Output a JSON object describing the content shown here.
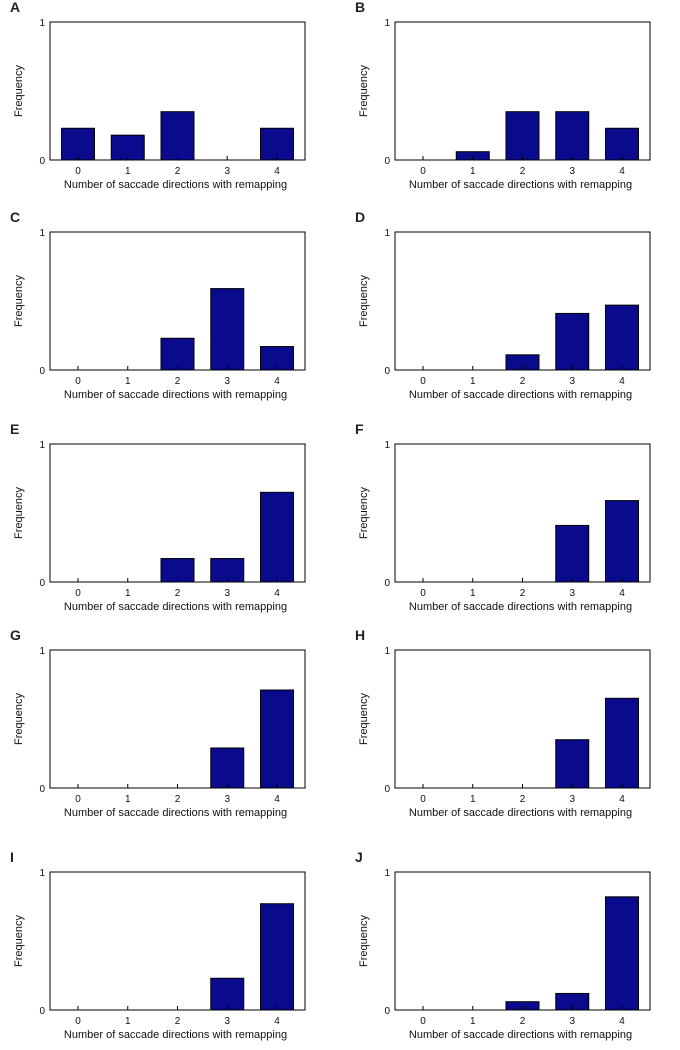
{
  "colors": {
    "bar_fill": "#0a0a8c",
    "bar_stroke": "#000000",
    "axis": "#000000"
  },
  "chart_data": [
    {
      "panel": "A",
      "type": "bar",
      "categories": [
        "0",
        "1",
        "2",
        "3",
        "4"
      ],
      "values": [
        0.23,
        0.18,
        0.35,
        0,
        0.23
      ],
      "xlabel": "Number of saccade directions with remapping",
      "ylabel": "Frequency",
      "ylim": [
        0,
        1
      ],
      "yticks": [
        "0",
        "1"
      ]
    },
    {
      "panel": "B",
      "type": "bar",
      "categories": [
        "0",
        "1",
        "2",
        "3",
        "4"
      ],
      "values": [
        0,
        0.06,
        0.35,
        0.35,
        0.23
      ],
      "xlabel": "Number of saccade directions with remapping",
      "ylabel": "Frequency",
      "ylim": [
        0,
        1
      ],
      "yticks": [
        "0",
        "1"
      ]
    },
    {
      "panel": "C",
      "type": "bar",
      "categories": [
        "0",
        "1",
        "2",
        "3",
        "4"
      ],
      "values": [
        0,
        0,
        0.23,
        0.59,
        0.17
      ],
      "xlabel": "Number of saccade directions with remapping",
      "ylabel": "Frequency",
      "ylim": [
        0,
        1
      ],
      "yticks": [
        "0",
        "1"
      ]
    },
    {
      "panel": "D",
      "type": "bar",
      "categories": [
        "0",
        "1",
        "2",
        "3",
        "4"
      ],
      "values": [
        0,
        0,
        0.11,
        0.41,
        0.47
      ],
      "xlabel": "Number of saccade directions with remapping",
      "ylabel": "Frequency",
      "ylim": [
        0,
        1
      ],
      "yticks": [
        "0",
        "1"
      ]
    },
    {
      "panel": "E",
      "type": "bar",
      "categories": [
        "0",
        "1",
        "2",
        "3",
        "4"
      ],
      "values": [
        0,
        0,
        0.17,
        0.17,
        0.65
      ],
      "xlabel": "Number of saccade directions with remapping",
      "ylabel": "Frequency",
      "ylim": [
        0,
        1
      ],
      "yticks": [
        "0",
        "1"
      ]
    },
    {
      "panel": "F",
      "type": "bar",
      "categories": [
        "0",
        "1",
        "2",
        "3",
        "4"
      ],
      "values": [
        0,
        0,
        0,
        0.41,
        0.59
      ],
      "xlabel": "Number of saccade directions with remapping",
      "ylabel": "Frequency",
      "ylim": [
        0,
        1
      ],
      "yticks": [
        "0",
        "1"
      ]
    },
    {
      "panel": "G",
      "type": "bar",
      "categories": [
        "0",
        "1",
        "2",
        "3",
        "4"
      ],
      "values": [
        0,
        0,
        0,
        0.29,
        0.71
      ],
      "xlabel": "Number of saccade directions with remapping",
      "ylabel": "Frequency",
      "ylim": [
        0,
        1
      ],
      "yticks": [
        "0",
        "1"
      ]
    },
    {
      "panel": "H",
      "type": "bar",
      "categories": [
        "0",
        "1",
        "2",
        "3",
        "4"
      ],
      "values": [
        0,
        0,
        0,
        0.35,
        0.65
      ],
      "xlabel": "Number of saccade directions with remapping",
      "ylabel": "Frequency",
      "ylim": [
        0,
        1
      ],
      "yticks": [
        "0",
        "1"
      ]
    },
    {
      "panel": "I",
      "type": "bar",
      "categories": [
        "0",
        "1",
        "2",
        "3",
        "4"
      ],
      "values": [
        0,
        0,
        0,
        0.23,
        0.77
      ],
      "xlabel": "Number of saccade directions with remapping",
      "ylabel": "Frequency",
      "ylim": [
        0,
        1
      ],
      "yticks": [
        "0",
        "1"
      ]
    },
    {
      "panel": "J",
      "type": "bar",
      "categories": [
        "0",
        "1",
        "2",
        "3",
        "4"
      ],
      "values": [
        0,
        0,
        0.06,
        0.12,
        0.82
      ],
      "xlabel": "Number of saccade directions with remapping",
      "ylabel": "Frequency",
      "ylim": [
        0,
        1
      ],
      "yticks": [
        "0",
        "1"
      ]
    }
  ]
}
